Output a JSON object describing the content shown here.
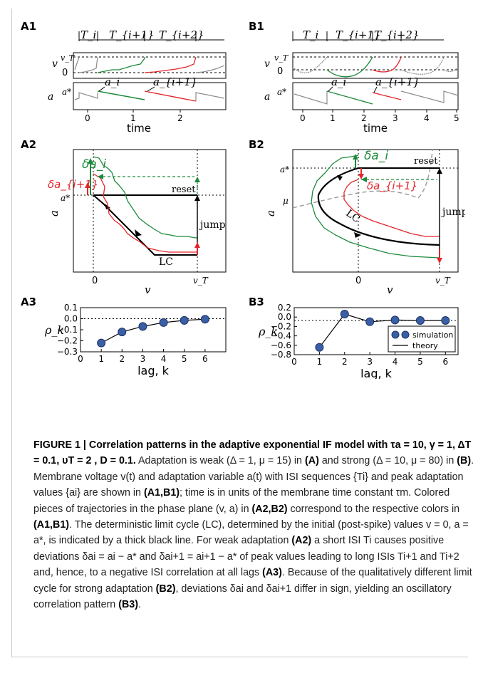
{
  "labels": {
    "A1": "A1",
    "B1": "B1",
    "A2": "A2",
    "B2": "B2",
    "A3": "A3",
    "B3": "B3"
  },
  "row1": {
    "isi_labels_A": [
      "T_i",
      "T_{i+1}",
      "T_{i+2}"
    ],
    "isi_labels_B": [
      "T_i",
      "T_{i+1}",
      "T_{i+2}"
    ],
    "v_label": "v",
    "vT_label": "v_T",
    "zero_label": "0",
    "a_label": "a",
    "astar_label": "a*",
    "ai_label": "a_i",
    "ai1_label": "a_{i+1}",
    "xticks_A": [
      "0",
      "1",
      "2"
    ],
    "xticks_B": [
      "0",
      "1",
      "2",
      "3",
      "4",
      "5"
    ],
    "xlabel": "time"
  },
  "row2": {
    "delta_ai": "δa_i",
    "delta_ai1": "δa_{i+1}",
    "reset": "reset",
    "jump": "jump",
    "lc": "LC",
    "astar": "a*",
    "mu": "μ",
    "ylabel": "a",
    "xlabel": "v",
    "x0": "0",
    "xvT": "v_T"
  },
  "chart_data": [
    {
      "type": "scatter",
      "panel": "A3",
      "x": [
        1,
        2,
        3,
        4,
        5,
        6
      ],
      "y": [
        -0.22,
        -0.12,
        -0.07,
        -0.035,
        -0.015,
        -0.005
      ],
      "theory_x": [
        1,
        2,
        3,
        4,
        5,
        6
      ],
      "theory_y": [
        -0.22,
        -0.12,
        -0.07,
        -0.035,
        -0.015,
        -0.005
      ],
      "xlabel": "lag, k",
      "ylabel": "ρ_k",
      "xlim": [
        0,
        7
      ],
      "ylim": [
        -0.3,
        0.1
      ],
      "xticks": [
        "0",
        "1",
        "2",
        "3",
        "4",
        "5",
        "6"
      ],
      "yticks": [
        "0.1",
        "0.0",
        "−0.1",
        "−0.2",
        "−0.3"
      ]
    },
    {
      "type": "scatter",
      "panel": "B3",
      "x": [
        1,
        2,
        3,
        4,
        5,
        6
      ],
      "y": [
        -0.63,
        0.15,
        -0.03,
        0.01,
        0.0,
        0.0
      ],
      "theory_x": [
        1,
        2,
        3,
        4,
        5,
        6
      ],
      "theory_y": [
        -0.63,
        0.15,
        -0.03,
        0.01,
        0.0,
        0.0
      ],
      "xlabel": "lag, k",
      "ylabel": "ρ_k",
      "xlim": [
        0,
        6.5
      ],
      "ylim": [
        -0.8,
        0.3
      ],
      "xticks": [
        "0",
        "1",
        "2",
        "3",
        "4",
        "5",
        "6"
      ],
      "yticks": [
        "0.2",
        "0.0",
        "−0.2",
        "−0.4",
        "−0.6",
        "−0.8"
      ],
      "legend": [
        "simulation",
        "theory"
      ],
      "legend_position": "lower-right"
    }
  ],
  "caption": {
    "title": "FIGURE 1 | Correlation patterns in the adaptive exponential IF model with τa = 10, γ = 1, ΔT = 0.1, υT = 2 , D = 0.1.",
    "body": [
      " Adaptation is weak (Δ = 1, μ = 15) in ",
      "(A)",
      " and strong (Δ = 10, μ = 80) in ",
      "(B)",
      ". Membrane voltage v(t) and adaptation variable a(t) with ISI sequences {Ti} and peak adaptation values {ai} are shown in ",
      "(A1,B1)",
      "; time is in units of the membrane time constant τm. Colored pieces of trajectories in the phase plane (v, a) in ",
      "(A2,B2)",
      " correspond to the respective colors in ",
      "(A1,B1)",
      ". The deterministic limit cycle (LC), determined by the initial (post-spike) values v = 0, a = a*, is indicated by a thick black line. For weak adaptation ",
      "(A2)",
      " a short ISI Ti causes positive deviations δai = ai − a* and δai+1 = ai+1 − a* of peak values leading to long ISIs Ti+1 and Ti+2 and, hence, to a negative ISI correlation at all lags ",
      "(A3)",
      ". Because of the qualitatively different limit cycle for strong adaptation ",
      "(B2)",
      ", deviations δai and δai+1 differ in sign, yielding an oscillatory correlation pattern ",
      "(B3)",
      "."
    ]
  },
  "colors": {
    "green": "#1e8a3c",
    "red": "#e3262b",
    "gray": "#8c8c8c",
    "dot": "#3a5fa5",
    "dotedge": "#1a2f66"
  }
}
